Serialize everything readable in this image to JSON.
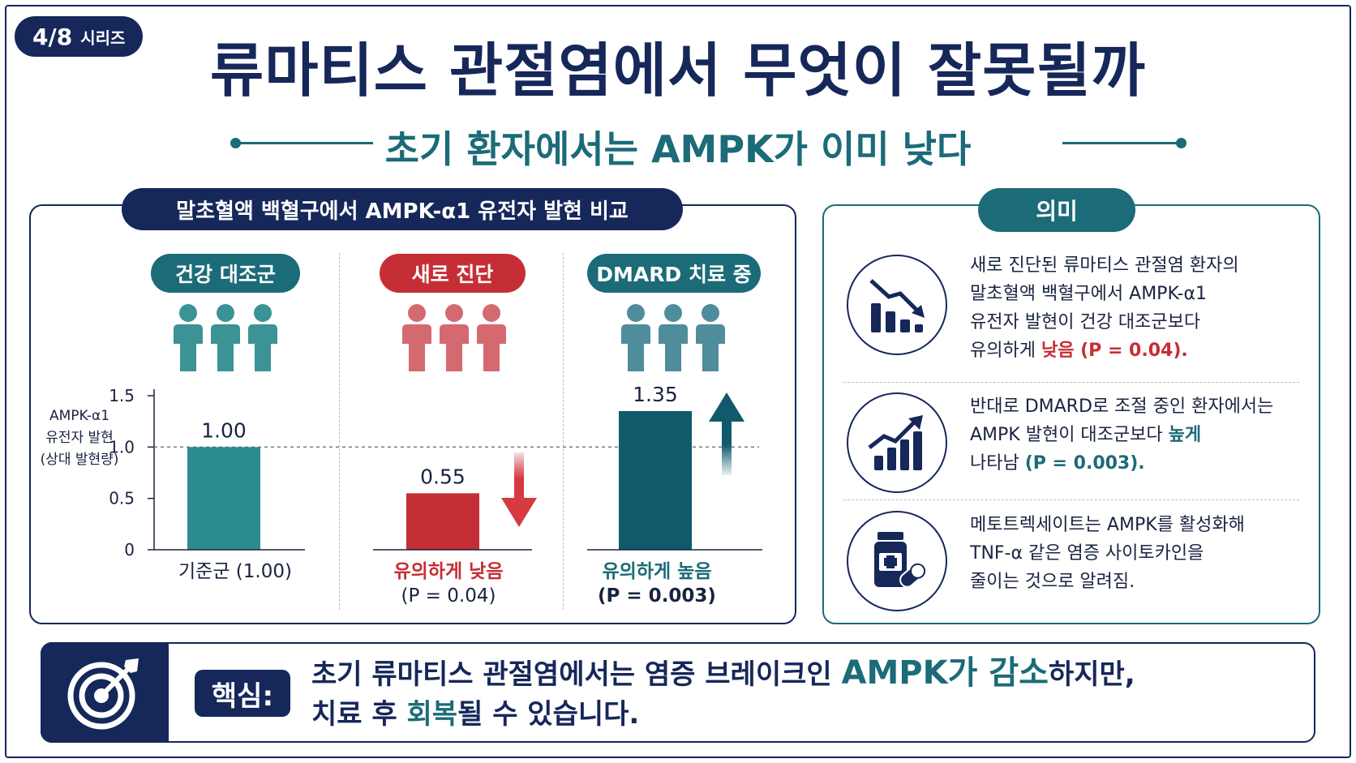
{
  "badge": {
    "number": "4/8",
    "label": "시리즈"
  },
  "title": "류마티스 관절염에서 무엇이 잘못될까",
  "subtitle": "초기 환자에서는 AMPK가 이미 낮다",
  "comparison": {
    "title": "말초혈액 백혈구에서 AMPK-α1 유전자 발현 비교",
    "groups": [
      {
        "label": "건강 대조군",
        "caption1": "기준군 (1.00)",
        "caption2": ""
      },
      {
        "label": "새로 진단",
        "caption1": "유의하게 낮음",
        "caption2": "(P = 0.04)"
      },
      {
        "label": "DMARD 치료 중",
        "caption1": "유의하게 높음",
        "caption2": "(P = 0.003)"
      }
    ]
  },
  "chart_data": {
    "type": "bar",
    "categories": [
      "건강 대조군",
      "새로 진단",
      "DMARD 치료 중"
    ],
    "values": [
      1.0,
      0.55,
      1.35
    ],
    "value_labels": [
      "1.00",
      "0.55",
      "1.35"
    ],
    "ylabel_lines": [
      "AMPK-α1",
      "유전자 발현",
      "(상대 발현량)"
    ],
    "yticks": [
      "0",
      "0.5",
      "1.0",
      "1.5"
    ],
    "ytick_values": [
      0,
      0.5,
      1.0,
      1.5
    ],
    "ylim": [
      0,
      1.5
    ],
    "reference_line": 1.0,
    "colors": [
      "#2a8c91",
      "#c62e35",
      "#115a6b"
    ],
    "grid": false
  },
  "meaning": {
    "title": "의미",
    "items": [
      {
        "icon": "chart-decline-icon",
        "lines": [
          "새로 진단된 류마티스 관절염 환자의",
          "말초혈액 백혈구에서 AMPK-α1",
          "유전자 발현이 건강 대조군보다"
        ],
        "last_prefix": "유의하게 ",
        "last_highlight": "낮음 (P = 0.04)",
        "last_suffix": "."
      },
      {
        "icon": "chart-growth-icon",
        "line1": "반대로 DMARD로 조절 중인 환자에서는",
        "line2_prefix": "AMPK 발현이 대조군보다 ",
        "line2_highlight": "높게",
        "line3_prefix": "나타남 ",
        "line3_highlight": "(P = 0.003)",
        "line3_suffix": "."
      },
      {
        "icon": "medicine-bottle-icon",
        "lines": [
          "메토트렉세이트는 AMPK를 활성화해",
          "TNF-α 같은 염증 사이토카인을",
          "줄이는 것으로 알려짐."
        ]
      }
    ]
  },
  "key": {
    "label": "핵심:",
    "line1_a": "초기 류마티스 관절염에서는 염증 브레이크인 ",
    "line1_b": "AMPK가 감소",
    "line1_c": "하지만,",
    "line2_a": "치료 후 ",
    "line2_b": "회복",
    "line2_c": "될 수 있습니다."
  }
}
